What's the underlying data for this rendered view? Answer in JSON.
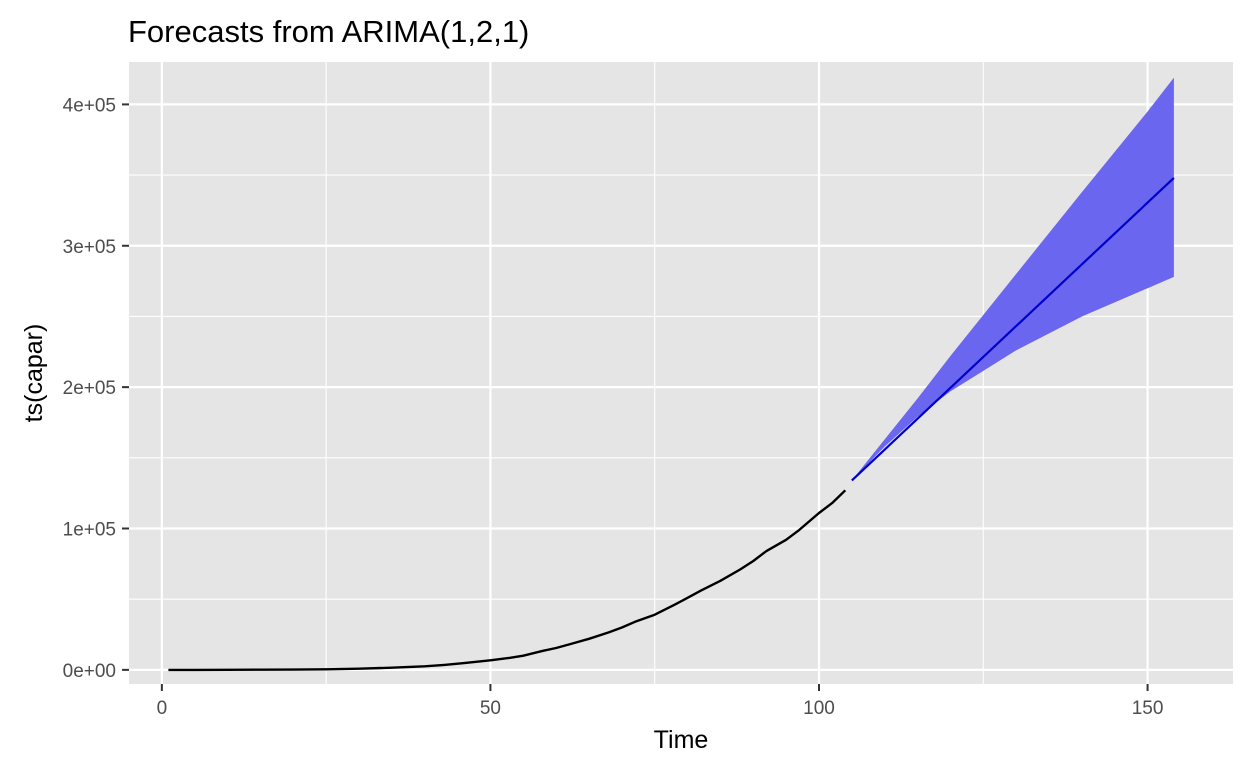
{
  "chart_data": {
    "type": "line",
    "title": "Forecasts from ARIMA(1,2,1)",
    "xlabel": "Time",
    "ylabel": "ts(capar)",
    "xlim": [
      -5,
      163
    ],
    "ylim": [
      -10000,
      430000
    ],
    "x_ticks": [
      0,
      50,
      100,
      150
    ],
    "x_tick_labels": [
      "0",
      "50",
      "100",
      "150"
    ],
    "x_minor_ticks": [
      25,
      75,
      125
    ],
    "y_ticks": [
      0,
      100000,
      200000,
      300000,
      400000
    ],
    "y_tick_labels": [
      "0e+00",
      "1e+05",
      "2e+05",
      "3e+05",
      "4e+05"
    ],
    "y_minor_ticks": [
      50000,
      150000,
      250000,
      350000
    ],
    "grid": true,
    "legend": "none",
    "colors": {
      "panel": "#e5e5e5",
      "grid": "#ffffff",
      "series": "#000000",
      "forecast": "#0000cd",
      "interval": "#6b66ef"
    },
    "series": [
      {
        "x": [
          1,
          5,
          10,
          15,
          20,
          25,
          30,
          35,
          40,
          43,
          46,
          50,
          53,
          55,
          58,
          60,
          62,
          65,
          68,
          70,
          72,
          75,
          78,
          80,
          82,
          85,
          88,
          90,
          92,
          95,
          97,
          100,
          102,
          104
        ],
        "y": [
          0,
          0,
          50,
          100,
          200,
          400,
          800,
          1500,
          2500,
          3500,
          4800,
          6800,
          8500,
          10000,
          13500,
          15500,
          18000,
          22000,
          26500,
          30000,
          34000,
          39000,
          46000,
          51000,
          56000,
          63000,
          71000,
          77000,
          84000,
          92000,
          99000,
          111000,
          118000,
          127000
        ]
      }
    ],
    "forecast": {
      "x": [
        105,
        154
      ],
      "mean": [
        134000,
        348000
      ],
      "interval_x": [
        105,
        110,
        115,
        120,
        130,
        140,
        150,
        154
      ],
      "interval_lower": [
        134000,
        158000,
        179000,
        197000,
        226000,
        250000,
        270000,
        278000
      ],
      "interval_upper": [
        134000,
        163000,
        192000,
        222000,
        280000,
        338000,
        395000,
        419000
      ]
    }
  }
}
